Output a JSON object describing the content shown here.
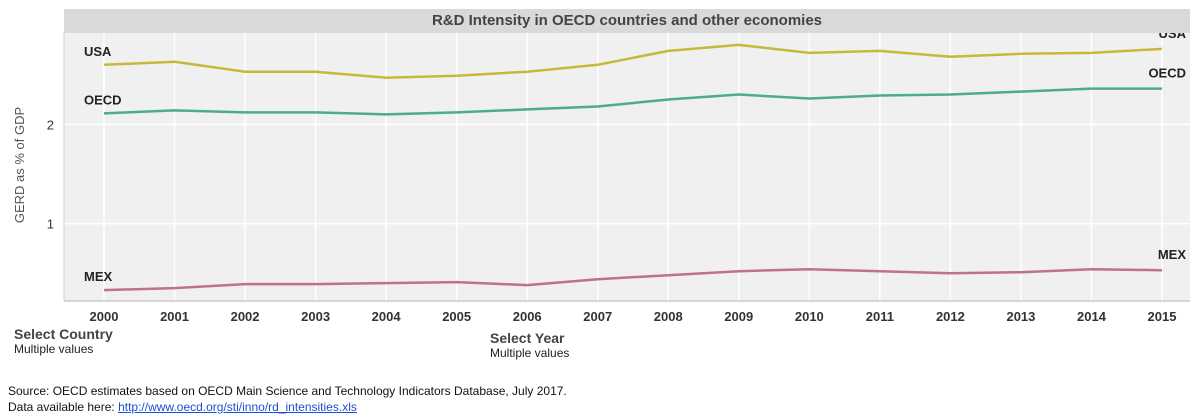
{
  "chart_data": {
    "type": "line",
    "title": "R&D Intensity in OECD countries and other economies",
    "ylabel": "GERD as % of GDP",
    "xlabel": "",
    "x": [
      "2000",
      "2001",
      "2002",
      "2003",
      "2004",
      "2005",
      "2006",
      "2007",
      "2008",
      "2009",
      "2010",
      "2011",
      "2012",
      "2013",
      "2014",
      "2015"
    ],
    "ylim": [
      0.22,
      2.92
    ],
    "yticks": [
      1,
      2
    ],
    "grid": true,
    "series": [
      {
        "name": "USA",
        "color": "#c8b83a",
        "values": [
          2.6,
          2.63,
          2.53,
          2.53,
          2.47,
          2.49,
          2.53,
          2.6,
          2.74,
          2.8,
          2.72,
          2.74,
          2.68,
          2.71,
          2.72,
          2.76
        ]
      },
      {
        "name": "OECD",
        "color": "#4cae87",
        "values": [
          2.11,
          2.14,
          2.12,
          2.12,
          2.1,
          2.12,
          2.15,
          2.18,
          2.25,
          2.3,
          2.26,
          2.29,
          2.3,
          2.33,
          2.36,
          2.36
        ]
      },
      {
        "name": "MEX",
        "color": "#c07090",
        "values": [
          0.33,
          0.35,
          0.39,
          0.39,
          0.4,
          0.41,
          0.38,
          0.44,
          0.48,
          0.52,
          0.54,
          0.52,
          0.5,
          0.51,
          0.54,
          0.53
        ]
      }
    ]
  },
  "filters": {
    "country": {
      "label": "Select Country",
      "value": "Multiple values"
    },
    "year": {
      "label": "Select Year",
      "value": "Multiple values"
    }
  },
  "footer": {
    "source": "Source: OECD estimates based on OECD Main Science and Technology Indicators Database, July 2017.",
    "data_prefix": "Data available here:",
    "data_link": "http://www.oecd.org/sti/inno/rd_intensities.xls"
  }
}
